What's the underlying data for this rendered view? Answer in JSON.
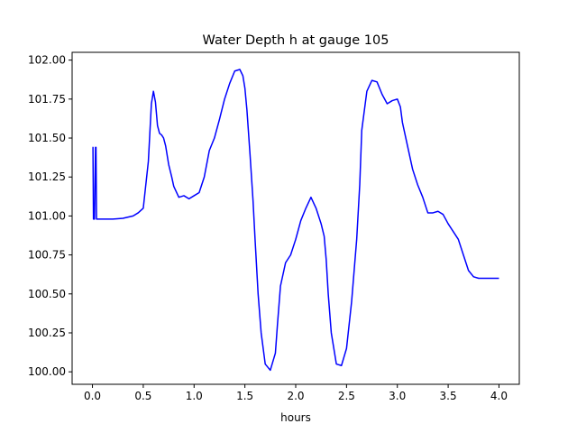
{
  "chart_data": {
    "type": "line",
    "title": "Water Depth h at gauge 105",
    "xlabel": "hours",
    "ylabel": "",
    "xlim": [
      -0.2,
      4.2
    ],
    "ylim": [
      99.92,
      102.05
    ],
    "grid": false,
    "legend": "none",
    "x_ticks": [
      0.0,
      0.5,
      1.0,
      1.5,
      2.0,
      2.5,
      3.0,
      3.5,
      4.0
    ],
    "x_tick_labels": [
      "0.0",
      "0.5",
      "1.0",
      "1.5",
      "2.0",
      "2.5",
      "3.0",
      "3.5",
      "4.0"
    ],
    "y_ticks": [
      100.0,
      100.25,
      100.5,
      100.75,
      101.0,
      101.25,
      101.5,
      101.75,
      102.0
    ],
    "y_tick_labels": [
      "100.00",
      "100.25",
      "100.50",
      "100.75",
      "101.00",
      "101.25",
      "101.50",
      "101.75",
      "102.00"
    ],
    "series": [
      {
        "color": "#0000ff",
        "x": [
          0.0,
          0.005,
          0.01,
          0.02,
          0.03,
          0.035,
          0.04,
          0.05,
          0.1,
          0.2,
          0.3,
          0.4,
          0.45,
          0.5,
          0.55,
          0.58,
          0.6,
          0.62,
          0.64,
          0.66,
          0.68,
          0.7,
          0.72,
          0.75,
          0.78,
          0.8,
          0.85,
          0.9,
          0.95,
          1.0,
          1.05,
          1.1,
          1.15,
          1.2,
          1.25,
          1.3,
          1.35,
          1.4,
          1.45,
          1.48,
          1.5,
          1.52,
          1.55,
          1.58,
          1.6,
          1.63,
          1.66,
          1.7,
          1.75,
          1.8,
          1.82,
          1.85,
          1.9,
          1.95,
          2.0,
          2.05,
          2.1,
          2.15,
          2.2,
          2.25,
          2.28,
          2.3,
          2.32,
          2.35,
          2.4,
          2.45,
          2.5,
          2.55,
          2.6,
          2.63,
          2.65,
          2.7,
          2.75,
          2.8,
          2.85,
          2.9,
          2.95,
          3.0,
          3.03,
          3.05,
          3.1,
          3.15,
          3.2,
          3.25,
          3.3,
          3.35,
          3.4,
          3.45,
          3.5,
          3.55,
          3.6,
          3.65,
          3.7,
          3.75,
          3.8,
          3.85,
          3.9,
          3.95,
          4.0
        ],
        "y": [
          101.44,
          101.44,
          100.98,
          100.98,
          101.44,
          101.44,
          100.98,
          100.98,
          100.98,
          100.98,
          100.985,
          101.0,
          101.02,
          101.05,
          101.35,
          101.72,
          101.8,
          101.73,
          101.58,
          101.53,
          101.52,
          101.5,
          101.45,
          101.33,
          101.25,
          101.19,
          101.12,
          101.13,
          101.11,
          101.13,
          101.15,
          101.25,
          101.42,
          101.5,
          101.62,
          101.75,
          101.85,
          101.93,
          101.94,
          101.9,
          101.82,
          101.68,
          101.4,
          101.1,
          100.85,
          100.5,
          100.25,
          100.05,
          100.01,
          100.12,
          100.3,
          100.55,
          100.7,
          100.75,
          100.85,
          100.97,
          101.05,
          101.12,
          101.05,
          100.95,
          100.87,
          100.72,
          100.5,
          100.25,
          100.05,
          100.04,
          100.15,
          100.45,
          100.85,
          101.2,
          101.55,
          101.8,
          101.87,
          101.86,
          101.78,
          101.72,
          101.74,
          101.75,
          101.7,
          101.6,
          101.45,
          101.3,
          101.2,
          101.12,
          101.02,
          101.02,
          101.03,
          101.01,
          100.95,
          100.9,
          100.85,
          100.75,
          100.65,
          100.61,
          100.6,
          100.6,
          100.6,
          100.6,
          100.6
        ]
      }
    ]
  }
}
